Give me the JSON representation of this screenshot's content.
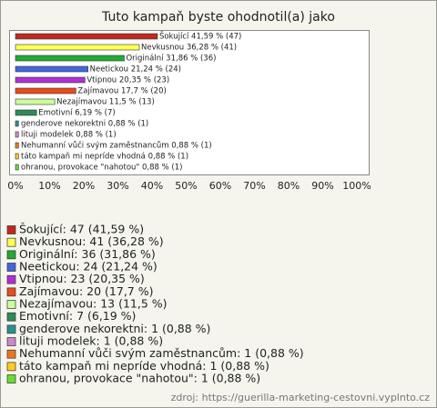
{
  "chart_data": {
    "type": "bar",
    "orientation": "horizontal",
    "title": "Tuto kampaň byste ohodnotil(a) jako",
    "categories": [
      "Šokující",
      "Nevkusnou",
      "Originální",
      "Neetickou",
      "Vtipnou",
      "Zajímavou",
      "Nezajímavou",
      "Emotivní",
      "genderove nekorektni",
      "lituji modelek",
      "Nehumanní vůči svým zaměstnancům",
      "táto kampaň mi nepríde vhodná",
      "ohranou, provokace \"nahotou\""
    ],
    "values": [
      41.59,
      36.28,
      31.86,
      21.24,
      20.35,
      17.7,
      11.5,
      6.19,
      0.88,
      0.88,
      0.88,
      0.88,
      0.88
    ],
    "value_labels": [
      "Šokující 41,59 % (47)",
      "Nevkusnou 36,28 % (41)",
      "Originální 31,86 % (36)",
      "Neetickou 21,24 % (24)",
      "Vtipnou 20,35 % (23)",
      "Zajímavou 17,7 % (20)",
      "Nezajímavou 11,5 % (13)",
      "Emotivní 6,19 % (7)",
      "genderove nekorektni 0,88 % (1)",
      "lituji modelek 0,88 % (1)",
      "Nehumanní vůči svým zaměstnancům 0,88 % (1)",
      "táto kampaň mi nepríde vhodná 0,88 % (1)",
      "ohranou, provokace \"nahotou\" 0,88 % (1)"
    ],
    "legend_labels": [
      "Šokující: 47 (41,59 %)",
      "Nevkusnou: 41 (36,28 %)",
      "Originální: 36 (31,86 %)",
      "Neetickou: 24 (21,24 %)",
      "Vtipnou: 23 (20,35 %)",
      "Zajímavou: 20 (17,7 %)",
      "Nezajímavou: 13 (11,5 %)",
      "Emotivní: 7 (6,19 %)",
      "genderove nekorektni: 1 (0,88 %)",
      "lituji modelek: 1 (0,88 %)",
      "Nehumanní vůči svým zaměstnancům: 1 (0,88 %)",
      "táto kampaň mi nepríde vhodná: 1 (0,88 %)",
      "ohranou, provokace \"nahotou\": 1 (0,88 %)"
    ],
    "colors": [
      "#c0291e",
      "#ffff55",
      "#22aa33",
      "#4466dd",
      "#b030d0",
      "#e84c1c",
      "#ccff99",
      "#2e8b57",
      "#2a9090",
      "#cc88cc",
      "#ee7722",
      "#ffcc22",
      "#66dd33"
    ],
    "xlim": [
      0,
      100
    ],
    "xticks": [
      {
        "value": 0,
        "label": "0%"
      },
      {
        "value": 10,
        "label": "10%"
      },
      {
        "value": 20,
        "label": "20%"
      },
      {
        "value": 30,
        "label": "30%"
      },
      {
        "value": 40,
        "label": "40%"
      },
      {
        "value": 50,
        "label": "50%"
      },
      {
        "value": 60,
        "label": "60%"
      },
      {
        "value": 70,
        "label": "70%"
      },
      {
        "value": 80,
        "label": "80%"
      },
      {
        "value": 90,
        "label": "90%"
      },
      {
        "value": 100,
        "label": "100%"
      }
    ],
    "grid": false,
    "source": "zdroj: https://guerilla-marketing-cestovni.vyplnto.cz"
  }
}
